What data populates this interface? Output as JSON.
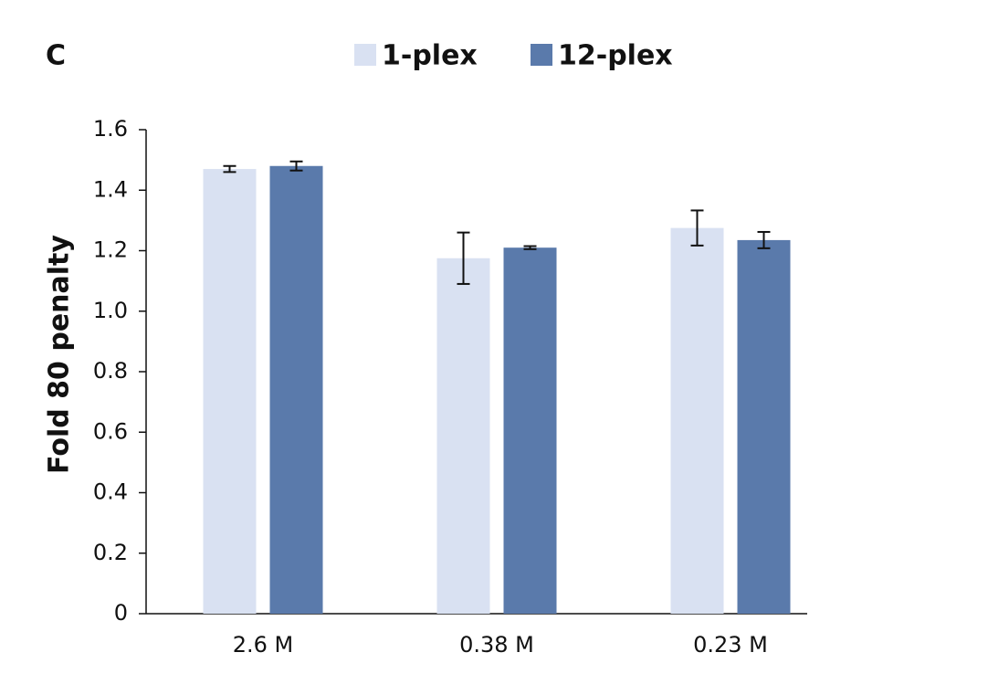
{
  "chart_data": {
    "type": "bar",
    "panel_label": "C",
    "y_label": "Fold 80 penalty",
    "categories": [
      "2.6 M",
      "0.38 M",
      "0.23 M"
    ],
    "series": [
      {
        "name": "1-plex",
        "color": "#d9e1f2",
        "values": [
          1.47,
          1.175,
          1.275
        ],
        "errors": [
          0.01,
          0.085,
          0.058
        ]
      },
      {
        "name": "12-plex",
        "color": "#5a7aab",
        "values": [
          1.48,
          1.21,
          1.235
        ],
        "errors": [
          0.015,
          0.005,
          0.027
        ]
      }
    ],
    "ylim": [
      0,
      1.6
    ],
    "yticks": [
      0,
      0.2,
      0.4,
      0.6,
      0.8,
      {
        "value": 1.0,
        "label": "1.0"
      },
      1.2,
      1.4,
      1.6
    ],
    "legend": "top"
  }
}
